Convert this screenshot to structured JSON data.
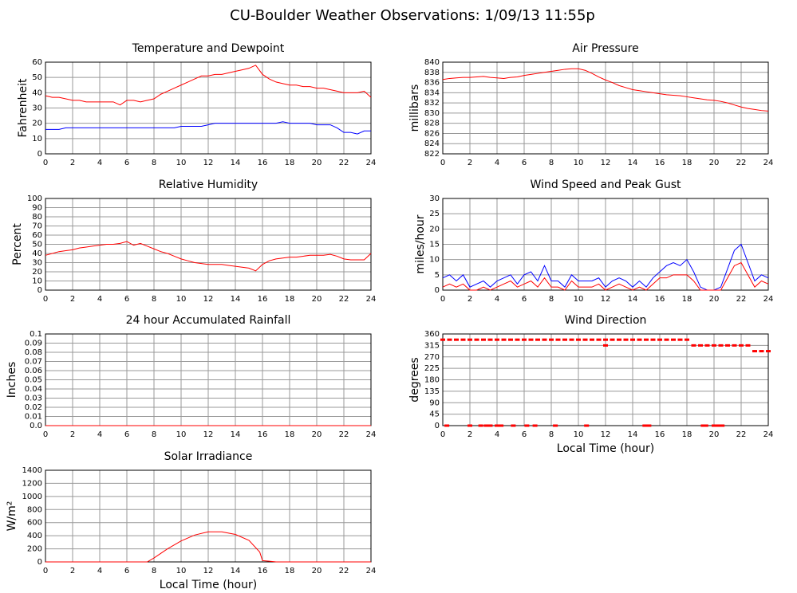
{
  "title": "CU-Boulder Weather Observations: 1/09/13 11:55p",
  "chart_data": [
    {
      "type": "line",
      "title": "Temperature and Dewpoint",
      "ylabel": "Fahrenheit",
      "xlim": [
        0,
        24
      ],
      "xticks": [
        0,
        2,
        4,
        6,
        8,
        10,
        12,
        14,
        16,
        18,
        20,
        22,
        24
      ],
      "ylim": [
        0,
        60
      ],
      "yticks": [
        0,
        10,
        20,
        30,
        40,
        50,
        60
      ],
      "grid": true,
      "x": [
        0,
        0.5,
        1,
        1.5,
        2,
        2.5,
        3,
        3.5,
        4,
        4.5,
        5,
        5.5,
        6,
        6.5,
        7,
        7.5,
        8,
        8.5,
        9,
        9.5,
        10,
        10.5,
        11,
        11.5,
        12,
        12.5,
        13,
        13.5,
        14,
        14.5,
        15,
        15.5,
        16,
        16.5,
        17,
        17.5,
        18,
        18.5,
        19,
        19.5,
        20,
        20.5,
        21,
        21.5,
        22,
        22.5,
        23,
        23.5,
        24
      ],
      "series": [
        {
          "color": "#ff0000",
          "values": [
            38,
            37,
            37,
            36,
            35,
            35,
            34,
            34,
            34,
            34,
            34,
            32,
            35,
            35,
            34,
            35,
            36,
            39,
            41,
            43,
            45,
            47,
            49,
            51,
            51,
            52,
            52,
            53,
            54,
            55,
            56,
            58,
            52,
            49,
            47,
            46,
            45,
            45,
            44,
            44,
            43,
            43,
            42,
            41,
            40,
            40,
            40,
            41,
            37
          ]
        },
        {
          "color": "#0000ff",
          "values": [
            16,
            16,
            16,
            17,
            17,
            17,
            17,
            17,
            17,
            17,
            17,
            17,
            17,
            17,
            17,
            17,
            17,
            17,
            17,
            17,
            18,
            18,
            18,
            18,
            19,
            20,
            20,
            20,
            20,
            20,
            20,
            20,
            20,
            20,
            20,
            21,
            20,
            20,
            20,
            20,
            19,
            19,
            19,
            17,
            14,
            14,
            13,
            15,
            15
          ]
        }
      ]
    },
    {
      "type": "line",
      "title": "Air Pressure",
      "ylabel": "millibars",
      "xlim": [
        0,
        24
      ],
      "xticks": [
        0,
        2,
        4,
        6,
        8,
        10,
        12,
        14,
        16,
        18,
        20,
        22,
        24
      ],
      "ylim": [
        822,
        840
      ],
      "yticks": [
        822,
        824,
        826,
        828,
        830,
        832,
        834,
        836,
        838,
        840
      ],
      "grid": true,
      "x": [
        0,
        0.5,
        1,
        1.5,
        2,
        2.5,
        3,
        3.5,
        4,
        4.5,
        5,
        5.5,
        6,
        6.5,
        7,
        7.5,
        8,
        8.5,
        9,
        9.5,
        10,
        10.5,
        11,
        11.5,
        12,
        12.5,
        13,
        13.5,
        14,
        14.5,
        15,
        15.5,
        16,
        16.5,
        17,
        17.5,
        18,
        18.5,
        19,
        19.5,
        20,
        20.5,
        21,
        21.5,
        22,
        22.5,
        23,
        23.5,
        24
      ],
      "series": [
        {
          "color": "#ff0000",
          "values": [
            836.6,
            836.8,
            836.9,
            837,
            837,
            837.1,
            837.2,
            837,
            836.9,
            836.8,
            837,
            837.1,
            837.4,
            837.6,
            837.8,
            838,
            838.2,
            838.4,
            838.6,
            838.7,
            838.7,
            838.4,
            837.8,
            837.1,
            836.5,
            836,
            835.4,
            835,
            834.6,
            834.4,
            834.2,
            834,
            833.8,
            833.6,
            833.5,
            833.4,
            833.2,
            833,
            832.8,
            832.6,
            832.5,
            832.3,
            832,
            831.6,
            831.2,
            830.9,
            830.7,
            830.5,
            830.4
          ]
        }
      ]
    },
    {
      "type": "line",
      "title": "Relative Humidity",
      "ylabel": "Percent",
      "xlim": [
        0,
        24
      ],
      "xticks": [
        0,
        2,
        4,
        6,
        8,
        10,
        12,
        14,
        16,
        18,
        20,
        22,
        24
      ],
      "ylim": [
        0,
        100
      ],
      "yticks": [
        0,
        10,
        20,
        30,
        40,
        50,
        60,
        70,
        80,
        90,
        100
      ],
      "grid": true,
      "x": [
        0,
        0.5,
        1,
        1.5,
        2,
        2.5,
        3,
        3.5,
        4,
        4.5,
        5,
        5.5,
        6,
        6.5,
        7,
        7.5,
        8,
        8.5,
        9,
        9.5,
        10,
        10.5,
        11,
        11.5,
        12,
        12.5,
        13,
        13.5,
        14,
        14.5,
        15,
        15.5,
        16,
        16.5,
        17,
        17.5,
        18,
        18.5,
        19,
        19.5,
        20,
        20.5,
        21,
        21.5,
        22,
        22.5,
        23,
        23.5,
        24
      ],
      "series": [
        {
          "color": "#ff0000",
          "values": [
            38,
            40,
            42,
            43,
            44,
            46,
            47,
            48,
            49,
            50,
            50,
            51,
            53,
            49,
            51,
            48,
            45,
            42,
            40,
            37,
            34,
            32,
            30,
            29,
            28,
            28,
            28,
            27,
            26,
            25,
            24,
            21,
            28,
            32,
            34,
            35,
            36,
            36,
            37,
            38,
            38,
            38,
            39,
            37,
            34,
            33,
            33,
            33,
            40
          ]
        }
      ]
    },
    {
      "type": "line",
      "title": "Wind Speed and Peak Gust",
      "ylabel": "miles/hour",
      "xlim": [
        0,
        24
      ],
      "xticks": [
        0,
        2,
        4,
        6,
        8,
        10,
        12,
        14,
        16,
        18,
        20,
        22,
        24
      ],
      "ylim": [
        0,
        30
      ],
      "yticks": [
        0,
        5,
        10,
        15,
        20,
        25,
        30
      ],
      "grid": true,
      "x": [
        0,
        0.5,
        1,
        1.5,
        2,
        2.5,
        3,
        3.5,
        4,
        4.5,
        5,
        5.5,
        6,
        6.5,
        7,
        7.5,
        8,
        8.5,
        9,
        9.5,
        10,
        10.5,
        11,
        11.5,
        12,
        12.5,
        13,
        13.5,
        14,
        14.5,
        15,
        15.5,
        16,
        16.5,
        17,
        17.5,
        18,
        18.5,
        19,
        19.5,
        20,
        20.5,
        21,
        21.5,
        22,
        22.5,
        23,
        23.5,
        24
      ],
      "series": [
        {
          "color": "#0000ff",
          "values": [
            4,
            5,
            3,
            5,
            1,
            2,
            3,
            1,
            3,
            4,
            5,
            2,
            5,
            6,
            3,
            8,
            3,
            3,
            1,
            5,
            3,
            3,
            3,
            4,
            1,
            3,
            4,
            3,
            1,
            3,
            1,
            4,
            6,
            8,
            9,
            8,
            10,
            6,
            1,
            0,
            0,
            1,
            7,
            13,
            15,
            9,
            3,
            5,
            4
          ]
        },
        {
          "color": "#ff0000",
          "values": [
            1,
            2,
            1,
            2,
            0,
            0,
            1,
            0,
            1,
            2,
            3,
            1,
            2,
            3,
            1,
            4,
            1,
            1,
            0,
            3,
            1,
            1,
            1,
            2,
            0,
            1,
            2,
            1,
            0,
            1,
            0,
            2,
            4,
            4,
            5,
            5,
            5,
            3,
            0,
            0,
            0,
            0,
            4,
            8,
            9,
            5,
            1,
            3,
            2
          ]
        }
      ]
    },
    {
      "type": "line",
      "title": "24 hour Accumulated Rainfall",
      "ylabel": "Inches",
      "xlim": [
        0,
        24
      ],
      "xticks": [
        0,
        2,
        4,
        6,
        8,
        10,
        12,
        14,
        16,
        18,
        20,
        22,
        24
      ],
      "ylim": [
        0,
        0.1
      ],
      "yticks": [
        {
          "value": 0,
          "label": "0.0"
        },
        0.01,
        0.02,
        0.03,
        0.04,
        0.05,
        0.06,
        0.07,
        0.08,
        0.09,
        0.1
      ],
      "grid": true,
      "x": [
        0,
        24
      ],
      "series": [
        {
          "color": "#ff0000",
          "values": [
            0,
            0
          ]
        }
      ]
    },
    {
      "type": "scatter",
      "title": "Wind Direction",
      "ylabel": "degrees",
      "xlabel": "Local Time (hour)",
      "xlim": [
        0,
        24
      ],
      "xticks": [
        0,
        2,
        4,
        6,
        8,
        10,
        12,
        14,
        16,
        18,
        20,
        22,
        24
      ],
      "ylim": [
        0,
        360
      ],
      "yticks": [
        0,
        45,
        90,
        135,
        180,
        225,
        270,
        315,
        360
      ],
      "grid": true,
      "x": [
        0,
        0.5,
        1,
        1.5,
        2,
        2.5,
        3,
        3.5,
        4,
        4.5,
        5,
        5.5,
        6,
        6.5,
        7,
        7.5,
        8,
        8.5,
        9,
        9.5,
        10,
        10.5,
        11,
        11.5,
        12,
        12.5,
        13,
        13.5,
        14,
        14.5,
        15,
        15.5,
        16,
        16.5,
        17,
        17.5,
        18,
        18.5,
        19,
        19.5,
        20,
        20.5,
        21,
        21.5,
        22,
        22.5,
        23,
        23.5,
        24,
        12,
        0.3,
        2,
        2.8,
        3.2,
        3.5,
        4,
        4.3,
        5.2,
        6.2,
        6.8,
        8.3,
        10.6,
        14.9,
        15.2,
        19.2,
        19.4,
        20,
        20.3,
        20.6
      ],
      "series": [
        {
          "color": "#ff0000",
          "values": [
            337.5,
            337.5,
            337.5,
            337.5,
            337.5,
            337.5,
            337.5,
            337.5,
            337.5,
            337.5,
            337.5,
            337.5,
            337.5,
            337.5,
            337.5,
            337.5,
            337.5,
            337.5,
            337.5,
            337.5,
            337.5,
            337.5,
            337.5,
            337.5,
            337.5,
            337.5,
            337.5,
            337.5,
            337.5,
            337.5,
            337.5,
            337.5,
            337.5,
            337.5,
            337.5,
            337.5,
            337.5,
            315,
            315,
            315,
            315,
            315,
            315,
            315,
            315,
            315,
            292.5,
            292.5,
            292.5,
            315,
            0,
            0,
            0,
            0,
            0,
            0,
            0,
            0,
            0,
            0,
            0,
            0,
            0,
            0,
            0,
            0,
            0,
            0,
            0
          ]
        }
      ]
    },
    {
      "type": "line",
      "title": "Solar Irradiance",
      "ylabel": "W/m²",
      "xlabel": "Local Time (hour)",
      "xlim": [
        0,
        24
      ],
      "xticks": [
        0,
        2,
        4,
        6,
        8,
        10,
        12,
        14,
        16,
        18,
        20,
        22,
        24
      ],
      "ylim": [
        0,
        1400
      ],
      "yticks": [
        0,
        200,
        400,
        600,
        800,
        1000,
        1200,
        1400
      ],
      "grid": true,
      "x": [
        0,
        7.5,
        8,
        9,
        10,
        11,
        12,
        13,
        14,
        15,
        15.8,
        16,
        16.5,
        17,
        24
      ],
      "series": [
        {
          "color": "#ff0000",
          "values": [
            0,
            0,
            60,
            200,
            320,
            410,
            460,
            460,
            420,
            330,
            150,
            20,
            10,
            0,
            0
          ]
        }
      ]
    }
  ]
}
